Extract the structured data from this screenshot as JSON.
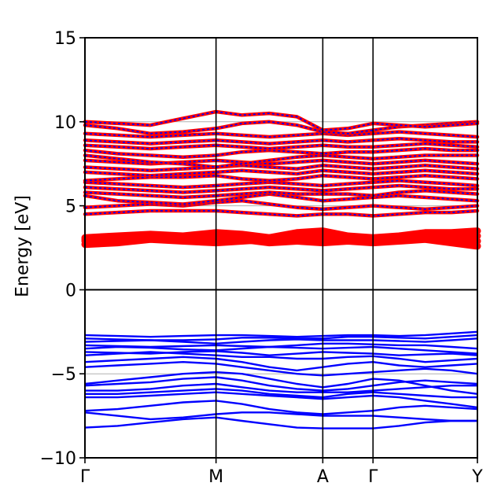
{
  "chart_data": {
    "type": "line",
    "title": "",
    "xlabel": "",
    "ylabel": "Energy [eV]",
    "ylim": [
      -10,
      15
    ],
    "xlim": [
      0,
      1
    ],
    "yticks": [
      {
        "value": 15,
        "label": "15"
      },
      {
        "value": 10,
        "label": "10"
      },
      {
        "value": 5,
        "label": "5"
      },
      {
        "value": 0,
        "label": "0"
      },
      {
        "value": -5,
        "label": "−5"
      },
      {
        "value": -10,
        "label": "−10"
      }
    ],
    "xticks": [
      {
        "value": 0,
        "label": "Γ"
      },
      {
        "value": 0.334,
        "label": "M"
      },
      {
        "value": 0.606,
        "label": "A"
      },
      {
        "value": 0.734,
        "label": "Γ"
      },
      {
        "value": 1,
        "label": "Y"
      }
    ],
    "grid": "horizontal",
    "zero_line": true,
    "colors": {
      "valence": "#0000ff",
      "conduction": "#ff0000",
      "grid": "#b0b0b0"
    },
    "x": [
      0,
      0.083,
      0.167,
      0.25,
      0.334,
      0.4,
      0.47,
      0.54,
      0.606,
      0.67,
      0.734,
      0.8,
      0.867,
      0.934,
      1
    ],
    "valence_bands": [
      [
        -2.7,
        -2.75,
        -2.8,
        -2.75,
        -2.7,
        -2.7,
        -2.75,
        -2.8,
        -2.75,
        -2.7,
        -2.7,
        -2.75,
        -2.7,
        -2.6,
        -2.5
      ],
      [
        -2.9,
        -2.95,
        -3.0,
        -3.0,
        -2.95,
        -2.85,
        -2.85,
        -2.9,
        -2.9,
        -2.8,
        -2.8,
        -2.85,
        -2.9,
        -2.8,
        -2.7
      ],
      [
        -3.1,
        -3.05,
        -3.0,
        -3.1,
        -3.2,
        -3.1,
        -3.0,
        -2.95,
        -3.0,
        -3.0,
        -3.0,
        -3.05,
        -3.1,
        -3.0,
        -2.9
      ],
      [
        -3.3,
        -3.35,
        -3.4,
        -3.35,
        -3.3,
        -3.35,
        -3.4,
        -3.3,
        -3.2,
        -3.2,
        -3.25,
        -3.3,
        -3.3,
        -3.4,
        -3.5
      ],
      [
        -3.5,
        -3.4,
        -3.45,
        -3.55,
        -3.6,
        -3.5,
        -3.4,
        -3.45,
        -3.5,
        -3.45,
        -3.4,
        -3.5,
        -3.6,
        -3.7,
        -3.8
      ],
      [
        -3.7,
        -3.75,
        -3.8,
        -3.7,
        -3.65,
        -3.75,
        -3.9,
        -3.8,
        -3.7,
        -3.75,
        -3.8,
        -3.9,
        -3.85,
        -3.8,
        -3.9
      ],
      [
        -3.9,
        -3.8,
        -3.7,
        -3.8,
        -3.9,
        -4.0,
        -4.0,
        -4.1,
        -4.1,
        -4.0,
        -3.95,
        -4.1,
        -4.3,
        -4.2,
        -4.1
      ],
      [
        -4.3,
        -4.2,
        -4.1,
        -4.0,
        -4.1,
        -4.3,
        -4.6,
        -4.8,
        -4.6,
        -4.4,
        -4.3,
        -4.5,
        -4.6,
        -4.5,
        -4.4
      ],
      [
        -4.6,
        -4.5,
        -4.4,
        -4.3,
        -4.4,
        -4.6,
        -4.8,
        -5.0,
        -5.1,
        -5.0,
        -4.9,
        -4.8,
        -4.7,
        -4.8,
        -5.0
      ],
      [
        -5.6,
        -5.4,
        -5.2,
        -5.0,
        -4.9,
        -5.0,
        -5.3,
        -5.6,
        -5.8,
        -5.6,
        -5.3,
        -5.4,
        -5.7,
        -6.0,
        -6.2
      ],
      [
        -5.7,
        -5.6,
        -5.5,
        -5.3,
        -5.2,
        -5.4,
        -5.7,
        -5.9,
        -6.0,
        -5.9,
        -5.7,
        -5.5,
        -5.4,
        -5.5,
        -5.6
      ],
      [
        -6.0,
        -6.0,
        -5.9,
        -5.7,
        -5.6,
        -5.8,
        -6.0,
        -6.1,
        -6.1,
        -6.1,
        -6.0,
        -5.9,
        -5.8,
        -5.7,
        -5.7
      ],
      [
        -6.2,
        -6.2,
        -6.1,
        -6.0,
        -5.9,
        -6.0,
        -6.2,
        -6.3,
        -6.4,
        -6.2,
        -6.1,
        -6.2,
        -6.3,
        -6.4,
        -6.4
      ],
      [
        -6.4,
        -6.4,
        -6.3,
        -6.2,
        -6.1,
        -6.2,
        -6.3,
        -6.4,
        -6.5,
        -6.4,
        -6.3,
        -6.4,
        -6.6,
        -6.8,
        -7.0
      ],
      [
        -7.2,
        -7.1,
        -6.9,
        -6.7,
        -6.6,
        -6.8,
        -7.1,
        -7.3,
        -7.4,
        -7.3,
        -7.2,
        -7.0,
        -6.9,
        -7.0,
        -7.1
      ],
      [
        -7.3,
        -7.5,
        -7.7,
        -7.6,
        -7.4,
        -7.3,
        -7.3,
        -7.4,
        -7.5,
        -7.5,
        -7.5,
        -7.6,
        -7.7,
        -7.8,
        -7.8
      ],
      [
        -8.2,
        -8.1,
        -7.9,
        -7.7,
        -7.6,
        -7.8,
        -8.0,
        -8.2,
        -8.25,
        -8.25,
        -8.25,
        -8.1,
        -7.9,
        -7.8,
        -7.8
      ]
    ],
    "conduction_bands": [
      [
        2.7,
        2.8,
        3.0,
        2.9,
        2.8,
        2.9,
        3.0,
        2.9,
        2.8,
        2.9,
        2.8,
        2.9,
        3.0,
        2.8,
        2.6
      ],
      [
        2.9,
        3.0,
        3.1,
        3.0,
        3.1,
        3.0,
        2.8,
        2.9,
        3.0,
        3.0,
        2.9,
        3.0,
        3.2,
        3.1,
        2.9
      ],
      [
        3.0,
        3.1,
        3.2,
        3.1,
        3.3,
        3.2,
        3.0,
        3.2,
        3.3,
        3.1,
        3.0,
        3.1,
        3.3,
        3.2,
        3.2
      ],
      [
        3.1,
        3.2,
        3.3,
        3.2,
        3.4,
        3.3,
        3.1,
        3.4,
        3.5,
        3.2,
        3.1,
        3.2,
        3.4,
        3.4,
        3.5
      ],
      [
        4.5,
        4.6,
        4.7,
        4.7,
        4.7,
        4.6,
        4.5,
        4.4,
        4.5,
        4.5,
        4.4,
        4.5,
        4.6,
        4.6,
        4.7
      ],
      [
        4.9,
        5.0,
        5.1,
        5.0,
        5.2,
        5.3,
        5.1,
        4.9,
        4.8,
        4.9,
        5.0,
        4.9,
        4.8,
        4.9,
        5.0
      ],
      [
        5.6,
        5.3,
        5.2,
        5.1,
        5.3,
        5.5,
        5.7,
        5.5,
        5.3,
        5.4,
        5.5,
        5.6,
        5.5,
        5.4,
        5.3
      ],
      [
        5.8,
        5.7,
        5.6,
        5.5,
        5.6,
        5.7,
        5.8,
        5.7,
        5.7,
        5.7,
        5.6,
        5.8,
        5.9,
        5.8,
        5.7
      ],
      [
        6.1,
        6.0,
        5.9,
        5.8,
        5.9,
        6.0,
        6.1,
        6.0,
        5.9,
        6.0,
        6.1,
        6.2,
        6.1,
        6.0,
        6.0
      ],
      [
        6.4,
        6.3,
        6.2,
        6.1,
        6.2,
        6.3,
        6.4,
        6.3,
        6.2,
        6.3,
        6.4,
        6.5,
        6.4,
        6.3,
        6.2
      ],
      [
        6.5,
        6.6,
        6.7,
        6.7,
        6.8,
        6.6,
        6.5,
        6.6,
        6.8,
        6.7,
        6.6,
        6.7,
        6.8,
        6.7,
        6.6
      ],
      [
        7.0,
        6.9,
        6.8,
        6.9,
        7.0,
        7.1,
        7.0,
        6.9,
        7.1,
        7.0,
        6.9,
        7.0,
        7.1,
        7.0,
        6.9
      ],
      [
        7.3,
        7.2,
        7.1,
        7.2,
        7.3,
        7.4,
        7.3,
        7.2,
        7.4,
        7.3,
        7.2,
        7.3,
        7.4,
        7.3,
        7.2
      ],
      [
        7.7,
        7.6,
        7.5,
        7.6,
        7.7,
        7.6,
        7.5,
        7.6,
        7.7,
        7.6,
        7.5,
        7.6,
        7.7,
        7.6,
        7.5
      ],
      [
        8.0,
        7.8,
        7.6,
        7.5,
        7.3,
        7.5,
        7.7,
        7.9,
        8.0,
        7.9,
        7.8,
        7.9,
        8.0,
        8.0,
        8.0
      ],
      [
        8.3,
        8.1,
        8.0,
        7.9,
        8.0,
        8.2,
        8.3,
        8.2,
        8.1,
        8.2,
        8.2,
        8.3,
        8.4,
        8.3,
        8.3
      ],
      [
        8.6,
        8.5,
        8.4,
        8.5,
        8.6,
        8.5,
        8.4,
        8.5,
        8.6,
        8.5,
        8.5,
        8.6,
        8.7,
        8.6,
        8.5
      ],
      [
        8.9,
        8.8,
        8.7,
        8.8,
        8.9,
        8.8,
        8.7,
        8.8,
        8.9,
        8.8,
        8.9,
        9.0,
        8.9,
        8.8,
        8.8
      ],
      [
        9.3,
        9.2,
        9.1,
        9.2,
        9.3,
        9.2,
        9.1,
        9.2,
        9.3,
        9.2,
        9.3,
        9.4,
        9.3,
        9.2,
        9.1
      ],
      [
        9.8,
        9.6,
        9.3,
        9.4,
        9.6,
        9.9,
        10.0,
        9.8,
        9.4,
        9.3,
        9.5,
        9.7,
        9.8,
        9.9,
        10.0
      ],
      [
        10.0,
        9.9,
        9.8,
        10.2,
        10.6,
        10.4,
        10.5,
        10.3,
        9.5,
        9.6,
        9.9,
        9.8,
        9.7,
        9.8,
        9.9
      ]
    ]
  }
}
